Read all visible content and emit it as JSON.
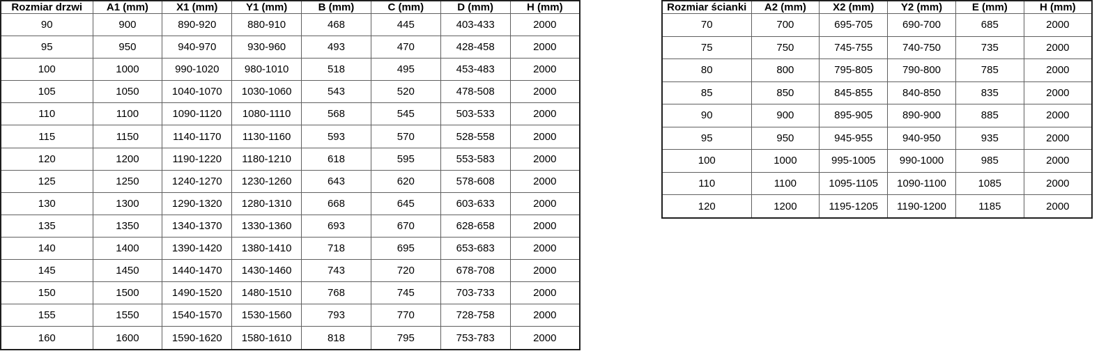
{
  "colors": {
    "background": "#ffffff",
    "text": "#000000",
    "inner_border": "#5f5f5f",
    "outer_border": "#1f1f1f"
  },
  "door_table": {
    "headers": [
      "Rozmiar drzwi",
      "A1 (mm)",
      "X1 (mm)",
      "Y1 (mm)",
      "B (mm)",
      "C (mm)",
      "D (mm)",
      "H (mm)"
    ],
    "rows": [
      [
        "90",
        "900",
        "890-920",
        "880-910",
        "468",
        "445",
        "403-433",
        "2000"
      ],
      [
        "95",
        "950",
        "940-970",
        "930-960",
        "493",
        "470",
        "428-458",
        "2000"
      ],
      [
        "100",
        "1000",
        "990-1020",
        "980-1010",
        "518",
        "495",
        "453-483",
        "2000"
      ],
      [
        "105",
        "1050",
        "1040-1070",
        "1030-1060",
        "543",
        "520",
        "478-508",
        "2000"
      ],
      [
        "110",
        "1100",
        "1090-1120",
        "1080-1110",
        "568",
        "545",
        "503-533",
        "2000"
      ],
      [
        "115",
        "1150",
        "1140-1170",
        "1130-1160",
        "593",
        "570",
        "528-558",
        "2000"
      ],
      [
        "120",
        "1200",
        "1190-1220",
        "1180-1210",
        "618",
        "595",
        "553-583",
        "2000"
      ],
      [
        "125",
        "1250",
        "1240-1270",
        "1230-1260",
        "643",
        "620",
        "578-608",
        "2000"
      ],
      [
        "130",
        "1300",
        "1290-1320",
        "1280-1310",
        "668",
        "645",
        "603-633",
        "2000"
      ],
      [
        "135",
        "1350",
        "1340-1370",
        "1330-1360",
        "693",
        "670",
        "628-658",
        "2000"
      ],
      [
        "140",
        "1400",
        "1390-1420",
        "1380-1410",
        "718",
        "695",
        "653-683",
        "2000"
      ],
      [
        "145",
        "1450",
        "1440-1470",
        "1430-1460",
        "743",
        "720",
        "678-708",
        "2000"
      ],
      [
        "150",
        "1500",
        "1490-1520",
        "1480-1510",
        "768",
        "745",
        "703-733",
        "2000"
      ],
      [
        "155",
        "1550",
        "1540-1570",
        "1530-1560",
        "793",
        "770",
        "728-758",
        "2000"
      ],
      [
        "160",
        "1600",
        "1590-1620",
        "1580-1610",
        "818",
        "795",
        "753-783",
        "2000"
      ]
    ]
  },
  "wall_table": {
    "headers": [
      "Rozmiar ścianki",
      "A2 (mm)",
      "X2 (mm)",
      "Y2 (mm)",
      "E (mm)",
      "H (mm)"
    ],
    "rows": [
      [
        "70",
        "700",
        "695-705",
        "690-700",
        "685",
        "2000"
      ],
      [
        "75",
        "750",
        "745-755",
        "740-750",
        "735",
        "2000"
      ],
      [
        "80",
        "800",
        "795-805",
        "790-800",
        "785",
        "2000"
      ],
      [
        "85",
        "850",
        "845-855",
        "840-850",
        "835",
        "2000"
      ],
      [
        "90",
        "900",
        "895-905",
        "890-900",
        "885",
        "2000"
      ],
      [
        "95",
        "950",
        "945-955",
        "940-950",
        "935",
        "2000"
      ],
      [
        "100",
        "1000",
        "995-1005",
        "990-1000",
        "985",
        "2000"
      ],
      [
        "110",
        "1100",
        "1095-1105",
        "1090-1100",
        "1085",
        "2000"
      ],
      [
        "120",
        "1200",
        "1195-1205",
        "1190-1200",
        "1185",
        "2000"
      ]
    ]
  }
}
